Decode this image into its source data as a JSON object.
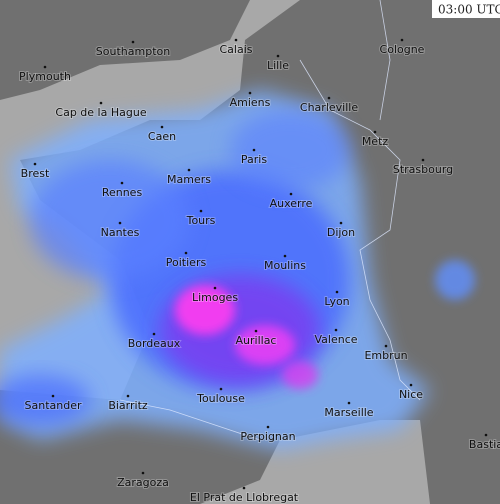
{
  "time_label": "03:00 UTC",
  "cities": [
    {
      "name": "Southampton"
    },
    {
      "name": "Calais"
    },
    {
      "name": "Lille"
    },
    {
      "name": "Cologne"
    },
    {
      "name": "Plymouth"
    },
    {
      "name": "Amiens"
    },
    {
      "name": "Charleville"
    },
    {
      "name": "Cap de la Hague"
    },
    {
      "name": "Caen"
    },
    {
      "name": "Metz"
    },
    {
      "name": "Paris"
    },
    {
      "name": "Brest"
    },
    {
      "name": "Mamers"
    },
    {
      "name": "Strasbourg"
    },
    {
      "name": "Rennes"
    },
    {
      "name": "Auxerre"
    },
    {
      "name": "Tours"
    },
    {
      "name": "Nantes"
    },
    {
      "name": "Dijon"
    },
    {
      "name": "Poitiers"
    },
    {
      "name": "Moulins"
    },
    {
      "name": "Limoges"
    },
    {
      "name": "Lyon"
    },
    {
      "name": "Aurillac"
    },
    {
      "name": "Valence"
    },
    {
      "name": "Bordeaux"
    },
    {
      "name": "Embrun"
    },
    {
      "name": "Nice"
    },
    {
      "name": "Toulouse"
    },
    {
      "name": "Santander"
    },
    {
      "name": "Biarritz"
    },
    {
      "name": "Marseille"
    },
    {
      "name": "Bastia"
    },
    {
      "name": "Perpignan"
    },
    {
      "name": "Zaragoza"
    },
    {
      "name": "El Prat de Llobregat"
    }
  ]
}
